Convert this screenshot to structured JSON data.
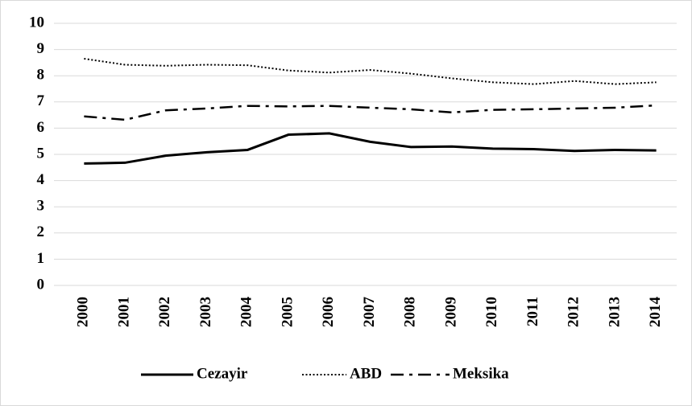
{
  "chart_data": {
    "type": "line",
    "categories": [
      "2000",
      "2001",
      "2002",
      "2003",
      "2004",
      "2005",
      "2006",
      "2007",
      "2008",
      "2009",
      "2010",
      "2011",
      "2012",
      "2013",
      "2014"
    ],
    "series": [
      {
        "name": "Cezayir",
        "color": "#000000",
        "style": "solid",
        "values": [
          4.65,
          4.68,
          4.95,
          5.08,
          5.17,
          5.75,
          5.8,
          5.48,
          5.28,
          5.3,
          5.22,
          5.2,
          5.13,
          5.17,
          5.15
        ]
      },
      {
        "name": "ABD",
        "color": "#000000",
        "style": "dotted",
        "values": [
          8.65,
          8.42,
          8.38,
          8.42,
          8.4,
          8.2,
          8.12,
          8.22,
          8.08,
          7.9,
          7.75,
          7.68,
          7.8,
          7.68,
          7.75
        ]
      },
      {
        "name": "Meksika",
        "color": "#000000",
        "style": "dashdot",
        "values": [
          6.45,
          6.32,
          6.68,
          6.75,
          6.85,
          6.83,
          6.85,
          6.78,
          6.72,
          6.6,
          6.7,
          6.72,
          6.75,
          6.78,
          6.87
        ]
      }
    ],
    "ylim": [
      0,
      10
    ],
    "yticks": [
      0,
      1,
      2,
      3,
      4,
      5,
      6,
      7,
      8,
      9,
      10
    ],
    "grid": true,
    "legend": "bottom"
  }
}
